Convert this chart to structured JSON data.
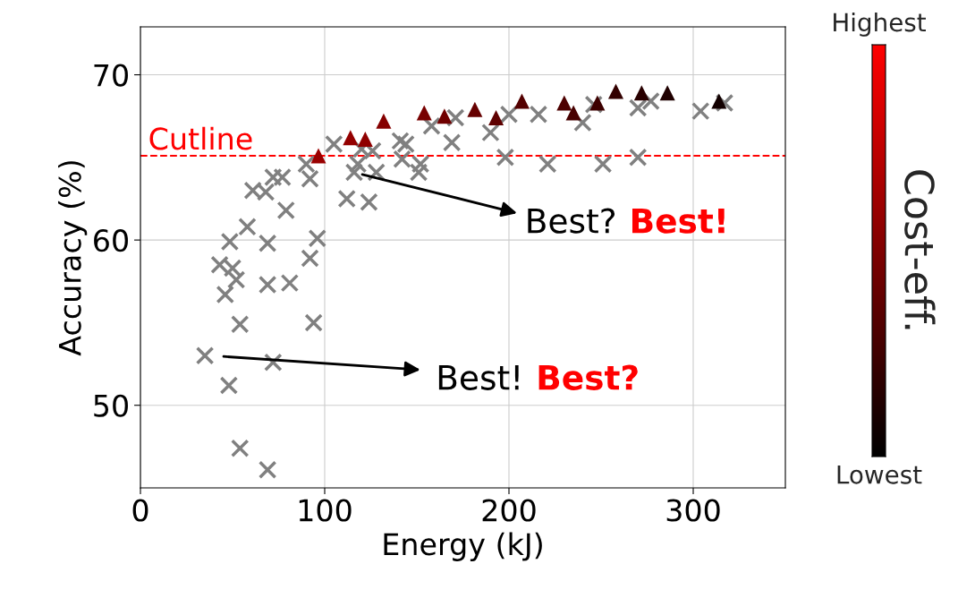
{
  "chart_data": {
    "type": "scatter",
    "xlabel": "Energy (kJ)",
    "ylabel": "Accuracy (%)",
    "clabel": "Cost-eff.",
    "xlim": [
      0,
      350
    ],
    "ylim": [
      45,
      72.9
    ],
    "xticks": [
      0,
      100,
      200,
      300
    ],
    "yticks": [
      50,
      60,
      70
    ],
    "grid": true,
    "series": [
      {
        "marker": "cross",
        "color": "#808080",
        "x": [
          48.5,
          58,
          61,
          68,
          72,
          77,
          79,
          90,
          92,
          96,
          92,
          69,
          43,
          50,
          105,
          112,
          124,
          116,
          118,
          128,
          126,
          120,
          141,
          144,
          142,
          152,
          151,
          158,
          169,
          171,
          190,
          200,
          198,
          216,
          221,
          240,
          246,
          251,
          270,
          277,
          270,
          304,
          317,
          52,
          69,
          81,
          46,
          54,
          94,
          35,
          72,
          48,
          54,
          69
        ],
        "values": [
          59.9,
          60.8,
          63.0,
          62.9,
          63.8,
          63.8,
          61.8,
          64.6,
          63.7,
          60.1,
          58.9,
          59.8,
          58.5,
          58.3,
          65.8,
          62.5,
          62.3,
          64.1,
          64.6,
          64.1,
          65.4,
          65.5,
          66.0,
          65.8,
          64.9,
          64.6,
          64.1,
          66.9,
          65.9,
          67.4,
          66.5,
          67.6,
          65.0,
          67.6,
          64.6,
          67.1,
          68.2,
          64.6,
          68.0,
          68.4,
          65.0,
          67.8,
          68.3,
          57.6,
          57.3,
          57.4,
          56.7,
          54.9,
          55.0,
          53.0,
          52.6,
          51.2,
          47.4,
          46.1
        ]
      },
      {
        "marker": "triangle",
        "x": [
          96.6,
          114,
          122,
          132,
          154,
          165,
          181.5,
          193,
          207,
          230,
          235,
          248,
          258,
          272,
          286,
          314
        ],
        "values": [
          65.1,
          66.2,
          66.1,
          67.2,
          67.7,
          67.5,
          67.9,
          67.4,
          68.4,
          68.3,
          67.7,
          68.3,
          69.0,
          68.9,
          68.9,
          68.4
        ],
        "colors": [
          "#990000",
          "#940000",
          "#8f0000",
          "#850000",
          "#780000",
          "#700000",
          "#660000",
          "#5e0000",
          "#540000",
          "#4d0000",
          "#470000",
          "#3d0000",
          "#330000",
          "#290000",
          "#1f0000",
          "#120000"
        ]
      }
    ],
    "ref_lines": [
      {
        "axis": "y",
        "value": 65.1,
        "label": "Cutline",
        "color": "#ff0000",
        "line_style": "dashed"
      }
    ],
    "annotations": [
      "Best?",
      "Best!",
      "Best!",
      "Best?",
      "Highest",
      "Lowest"
    ]
  }
}
